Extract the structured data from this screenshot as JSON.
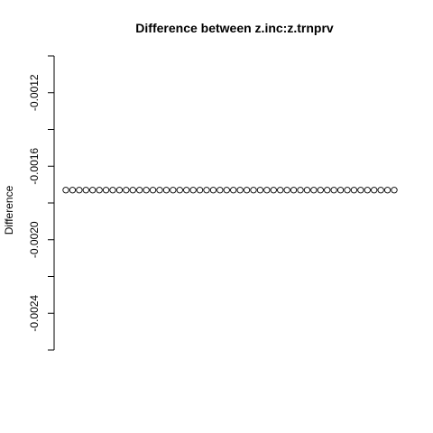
{
  "chart_data": {
    "type": "scatter",
    "title": "Difference between z.inc:z.trnprv",
    "xlabel": "",
    "ylabel": "Difference",
    "ylim": [
      -0.0026,
      -0.001
    ],
    "yticks": [
      -0.0012,
      -0.0016,
      -0.002,
      -0.0024
    ],
    "ytick_labels": [
      "-0.0012",
      "-0.0016",
      "-0.0020",
      "-0.0024"
    ],
    "x_axis_visible": false,
    "marker": "open-circle",
    "grid": false,
    "series": [
      {
        "x": [
          1,
          2,
          3,
          4,
          5,
          6,
          7,
          8,
          9,
          10,
          11,
          12,
          13,
          14,
          15,
          16,
          17,
          18,
          19,
          20,
          21,
          22,
          23,
          24,
          25,
          26,
          27,
          28,
          29,
          30,
          31,
          32,
          33,
          34,
          35,
          36,
          37,
          38,
          39,
          40,
          41,
          42,
          43,
          44,
          45,
          46,
          47,
          48,
          49,
          50
        ],
        "values": [
          -0.00173,
          -0.00173,
          -0.00173,
          -0.00173,
          -0.00173,
          -0.00173,
          -0.00173,
          -0.00173,
          -0.00173,
          -0.00173,
          -0.00173,
          -0.00173,
          -0.00173,
          -0.00173,
          -0.00173,
          -0.00173,
          -0.00173,
          -0.00173,
          -0.00173,
          -0.00173,
          -0.00173,
          -0.00173,
          -0.00173,
          -0.00173,
          -0.00173,
          -0.00173,
          -0.00173,
          -0.00173,
          -0.00173,
          -0.00173,
          -0.00173,
          -0.00173,
          -0.00173,
          -0.00173,
          -0.00173,
          -0.00173,
          -0.00173,
          -0.00173,
          -0.00173,
          -0.00173,
          -0.00173,
          -0.00173,
          -0.00173,
          -0.00173,
          -0.00173,
          -0.00173,
          -0.00173,
          -0.00173,
          -0.00173,
          -0.00173
        ]
      }
    ]
  }
}
